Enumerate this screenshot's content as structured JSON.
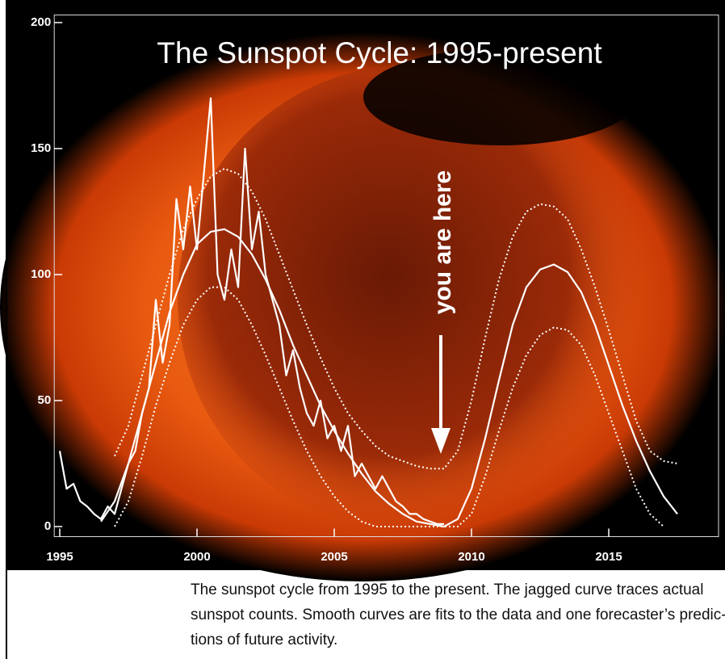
{
  "chart_data": {
    "type": "line",
    "title": "The Sunspot Cycle: 1995-present",
    "annotation": "you are here",
    "annotation_x": 2009,
    "xlim": [
      1994.8,
      2019
    ],
    "ylim": [
      -4,
      203
    ],
    "xticks": [
      1995,
      2000,
      2005,
      2010,
      2015
    ],
    "yticks": [
      0,
      50,
      100,
      150,
      200
    ],
    "series": [
      {
        "color": "#ffffff",
        "style": "solid",
        "x": [
          1995,
          1995.25,
          1995.5,
          1995.75,
          1996,
          1996.25,
          1996.5,
          1996.75,
          1997,
          1997.25,
          1997.5,
          1997.75,
          1998,
          1998.25,
          1998.5,
          1998.75,
          1999,
          1999.25,
          1999.5,
          1999.75,
          2000,
          2000.25,
          2000.5,
          2000.75,
          2001,
          2001.25,
          2001.5,
          2001.75,
          2002,
          2002.25,
          2002.5,
          2002.75,
          2003,
          2003.25,
          2003.5,
          2003.75,
          2004,
          2004.25,
          2004.5,
          2004.75,
          2005,
          2005.25,
          2005.5,
          2005.75,
          2006,
          2006.25,
          2006.5,
          2006.75,
          2007,
          2007.25,
          2007.5,
          2007.75,
          2008,
          2008.25,
          2008.5,
          2008.75,
          2009
        ],
        "values": [
          30,
          15,
          17,
          10,
          8,
          5,
          3,
          8,
          5,
          15,
          25,
          30,
          45,
          55,
          90,
          65,
          80,
          130,
          110,
          135,
          110,
          140,
          170,
          100,
          90,
          110,
          95,
          150,
          110,
          125,
          100,
          90,
          80,
          60,
          70,
          55,
          45,
          40,
          50,
          35,
          40,
          30,
          40,
          20,
          25,
          20,
          15,
          20,
          15,
          10,
          8,
          5,
          5,
          3,
          2,
          1,
          1
        ]
      },
      {
        "color": "#ffffff",
        "style": "solid",
        "x": [
          1996.5,
          1997,
          1997.5,
          1998,
          1998.5,
          1999,
          1999.5,
          2000,
          2000.5,
          2001,
          2001.5,
          2002,
          2002.5,
          2003,
          2003.5,
          2004,
          2004.5,
          2005,
          2005.5,
          2006,
          2006.5,
          2007,
          2007.5,
          2008,
          2008.5,
          2009,
          2009.5,
          2010,
          2010.5,
          2011,
          2011.5,
          2012,
          2012.5,
          2013,
          2013.5,
          2014,
          2014.5,
          2015,
          2015.5,
          2016,
          2016.5,
          2017,
          2017.5
        ],
        "values": [
          2,
          10,
          25,
          45,
          65,
          85,
          100,
          112,
          117,
          118,
          115,
          108,
          98,
          86,
          72,
          60,
          48,
          38,
          29,
          21,
          14,
          9,
          5,
          2,
          1,
          0,
          3,
          15,
          35,
          58,
          80,
          95,
          102,
          104,
          101,
          93,
          80,
          64,
          48,
          34,
          22,
          12,
          5
        ]
      },
      {
        "color": "#ffffff",
        "style": "dotted",
        "x": [
          1997,
          1997.5,
          1998,
          1998.5,
          1999,
          1999.5,
          2000,
          2000.5,
          2001,
          2001.5,
          2002,
          2002.5,
          2003,
          2003.5,
          2004,
          2004.5,
          2005,
          2005.5,
          2006,
          2006.5,
          2007,
          2007.5,
          2008,
          2008.5,
          2009,
          2009.5,
          2010,
          2010.5,
          2011,
          2011.5,
          2012,
          2012.5,
          2013,
          2013.5,
          2014,
          2014.5,
          2015,
          2015.5,
          2016,
          2016.5,
          2017,
          2017.5
        ],
        "values": [
          28,
          40,
          60,
          80,
          100,
          118,
          130,
          139,
          142,
          140,
          133,
          122,
          108,
          94,
          80,
          67,
          55,
          45,
          38,
          32,
          28,
          26,
          24,
          23,
          23,
          30,
          50,
          75,
          98,
          115,
          125,
          128,
          127,
          122,
          110,
          95,
          78,
          60,
          42,
          30,
          26,
          25
        ]
      },
      {
        "color": "#ffffff",
        "style": "dotted",
        "x": [
          1997,
          1997.5,
          1998,
          1998.5,
          1999,
          1999.5,
          2000,
          2000.5,
          2001,
          2001.5,
          2002,
          2002.5,
          2003,
          2003.5,
          2004,
          2004.5,
          2005,
          2005.5,
          2006,
          2006.5,
          2007,
          2008,
          2009,
          2009.5,
          2010,
          2010.5,
          2011,
          2011.5,
          2012,
          2012.5,
          2013,
          2013.5,
          2014,
          2014.5,
          2015,
          2015.5,
          2016,
          2016.5,
          2017
        ],
        "values": [
          0,
          10,
          28,
          48,
          65,
          80,
          90,
          95,
          95,
          90,
          80,
          68,
          55,
          42,
          30,
          20,
          12,
          6,
          2,
          0,
          0,
          0,
          0,
          0,
          5,
          20,
          38,
          55,
          68,
          76,
          79,
          78,
          72,
          60,
          45,
          30,
          15,
          5,
          0
        ]
      }
    ],
    "caption_lines": [
      "The sunspot cycle from 1995 to the present. The jagged curve traces actual",
      "sunspot counts. Smooth curves are fits to the data and one forecaster’s predic-",
      "tions of future activity."
    ]
  }
}
